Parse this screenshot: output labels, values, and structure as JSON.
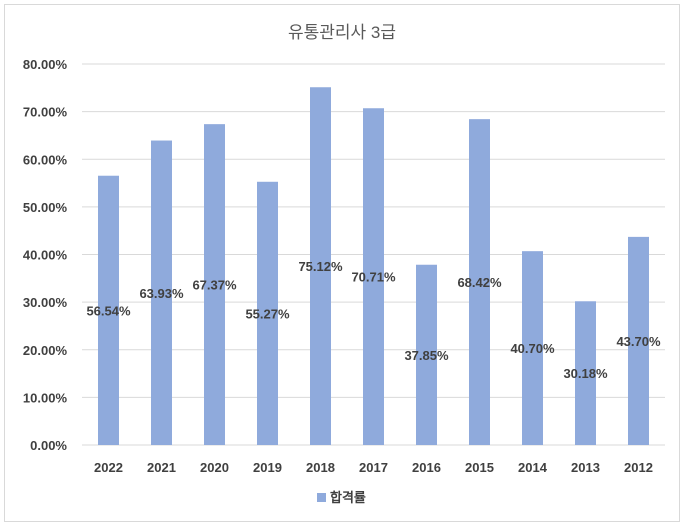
{
  "chart_data": {
    "type": "bar",
    "title": "유통관리사 3급",
    "categories": [
      "2022",
      "2021",
      "2020",
      "2019",
      "2018",
      "2017",
      "2016",
      "2015",
      "2014",
      "2013",
      "2012"
    ],
    "series": [
      {
        "name": "합격률",
        "values": [
          56.54,
          63.93,
          67.37,
          55.27,
          75.12,
          70.71,
          37.85,
          68.42,
          40.7,
          30.18,
          43.7
        ],
        "labels": [
          "56.54%",
          "63.93%",
          "67.37%",
          "55.27%",
          "75.12%",
          "70.71%",
          "37.85%",
          "68.42%",
          "40.70%",
          "30.18%",
          "43.70%"
        ]
      }
    ],
    "ylim": [
      0,
      80
    ],
    "yticks": [
      "0.00%",
      "10.00%",
      "20.00%",
      "30.00%",
      "40.00%",
      "50.00%",
      "60.00%",
      "70.00%",
      "80.00%"
    ],
    "grid": true,
    "legend": "bottom",
    "colors": {
      "bar": "#8faadc",
      "grid": "#d9d9d9",
      "text": "#404040"
    }
  }
}
